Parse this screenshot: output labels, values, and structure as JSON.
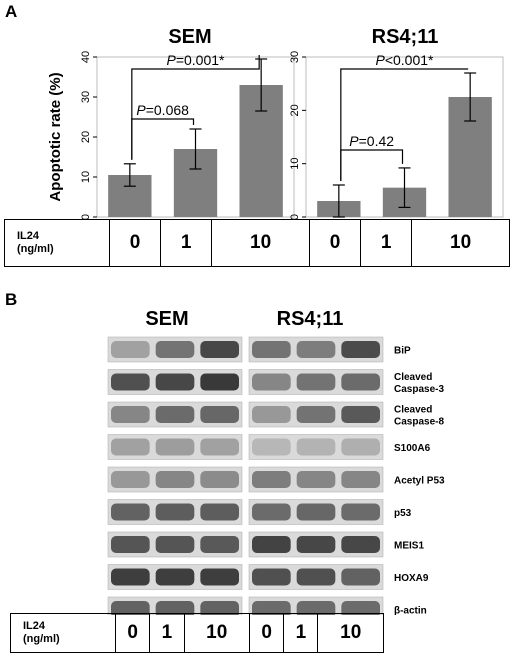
{
  "panel_a": {
    "label": "A",
    "ylabel": "Apoptotic rate (%)",
    "table_header_line1": "IL24",
    "table_header_line2": "(ng/ml)",
    "table_values": [
      "0",
      "1",
      "10",
      "0",
      "1",
      "10"
    ]
  },
  "panel_b": {
    "label": "B",
    "col_titles": [
      "SEM",
      "RS4;11"
    ],
    "proteins": [
      {
        "name": "BiP",
        "sem": [
          0.3,
          0.55,
          0.8
        ],
        "rs": [
          0.55,
          0.5,
          0.78
        ]
      },
      {
        "name": "Cleaved\nCaspase-3",
        "sem": [
          0.75,
          0.8,
          0.88
        ],
        "rs": [
          0.45,
          0.55,
          0.6
        ]
      },
      {
        "name": "Cleaved\nCaspase-8",
        "sem": [
          0.45,
          0.6,
          0.62
        ],
        "rs": [
          0.35,
          0.55,
          0.7
        ]
      },
      {
        "name": "S100A6",
        "sem": [
          0.3,
          0.32,
          0.3
        ],
        "rs": [
          0.18,
          0.2,
          0.22
        ]
      },
      {
        "name": "Acetyl P53",
        "sem": [
          0.35,
          0.45,
          0.42
        ],
        "rs": [
          0.5,
          0.45,
          0.45
        ]
      },
      {
        "name": "p53",
        "sem": [
          0.65,
          0.68,
          0.68
        ],
        "rs": [
          0.6,
          0.62,
          0.6
        ]
      },
      {
        "name": "MEIS1",
        "sem": [
          0.72,
          0.72,
          0.7
        ],
        "rs": [
          0.82,
          0.8,
          0.8
        ]
      },
      {
        "name": "HOXA9",
        "sem": [
          0.85,
          0.85,
          0.85
        ],
        "rs": [
          0.75,
          0.75,
          0.65
        ]
      },
      {
        "name": "β-actin",
        "sem": [
          0.65,
          0.65,
          0.65
        ],
        "rs": [
          0.6,
          0.6,
          0.6
        ]
      }
    ],
    "table_header_line1": "IL24",
    "table_header_line2": "(ng/ml)",
    "table_values": [
      "0",
      "1",
      "10",
      "0",
      "1",
      "10"
    ]
  },
  "chart_data": [
    {
      "type": "bar",
      "title": "SEM",
      "xlabel": "",
      "ylabel": "Apoptotic rate (%)",
      "categories": [
        "0",
        "1",
        "10"
      ],
      "values": [
        10.5,
        17.0,
        33.0
      ],
      "errors": [
        2.8,
        5.0,
        6.5
      ],
      "ylim": [
        0,
        40
      ],
      "yticks": [
        0,
        10,
        20,
        30,
        40
      ],
      "bar_color": "#7f7f7f",
      "annotations": [
        {
          "from": 0,
          "to": 1,
          "prefix": "P",
          "text": "=0.068"
        },
        {
          "from": 0,
          "to": 2,
          "prefix": "P",
          "text": "=0.001*"
        }
      ]
    },
    {
      "type": "bar",
      "title": "RS4;11",
      "xlabel": "",
      "ylabel": "",
      "categories": [
        "0",
        "1",
        "10"
      ],
      "values": [
        3.0,
        5.5,
        22.5
      ],
      "errors": [
        3.0,
        3.7,
        4.5
      ],
      "ylim": [
        0,
        30
      ],
      "yticks": [
        0,
        10,
        20,
        30
      ],
      "bar_color": "#7f7f7f",
      "annotations": [
        {
          "from": 0,
          "to": 1,
          "prefix": "P",
          "text": "=0.42"
        },
        {
          "from": 0,
          "to": 2,
          "prefix": "P",
          "text": "<0.001*"
        }
      ]
    }
  ]
}
